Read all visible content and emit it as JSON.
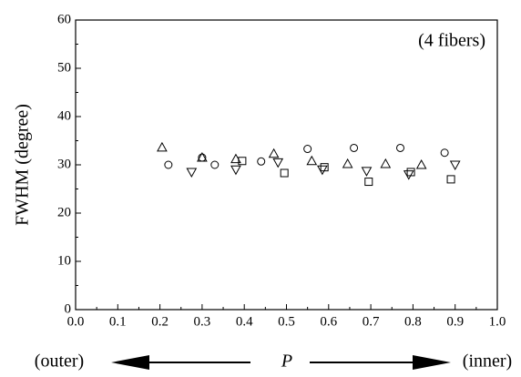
{
  "chart_data": {
    "type": "scatter",
    "y_label": "FWHM (degree)",
    "annotation": "(4 fibers)",
    "x_left_label": "(outer)",
    "x_label": "P",
    "x_right_label": "(inner)",
    "xlim": [
      0,
      1
    ],
    "xticks": [
      {
        "value": 0,
        "label": "0.0"
      },
      0.1,
      0.2,
      0.3,
      0.4,
      0.5,
      0.6,
      0.7,
      0.8,
      0.9,
      {
        "value": 1,
        "label": "1.0"
      }
    ],
    "ylim": [
      0,
      60
    ],
    "yticks": [
      0,
      10,
      20,
      30,
      40,
      50,
      60
    ],
    "grid": false,
    "series": [
      {
        "marker": "circle",
        "color": "#000000",
        "x": [
          0.22,
          0.3,
          0.33,
          0.44,
          0.55,
          0.66,
          0.77,
          0.875
        ],
        "values": [
          30,
          31.5,
          30,
          30.7,
          33.3,
          33.5,
          33.5,
          32.5
        ]
      },
      {
        "marker": "triangle-up",
        "color": "#000000",
        "x": [
          0.205,
          0.3,
          0.38,
          0.47,
          0.56,
          0.645,
          0.735,
          0.82
        ],
        "values": [
          33.6,
          31.5,
          31.2,
          32.3,
          30.8,
          30.2,
          30.2,
          30
        ]
      },
      {
        "marker": "triangle-down",
        "color": "#000000",
        "x": [
          0.275,
          0.38,
          0.48,
          0.585,
          0.69,
          0.79,
          0.9
        ],
        "values": [
          28.5,
          29,
          30.5,
          29,
          28.7,
          28,
          30
        ]
      },
      {
        "marker": "square",
        "color": "#000000",
        "x": [
          0.395,
          0.495,
          0.59,
          0.695,
          0.795,
          0.89
        ],
        "values": [
          30.8,
          28.3,
          29.5,
          26.5,
          28.5,
          27
        ]
      }
    ]
  }
}
